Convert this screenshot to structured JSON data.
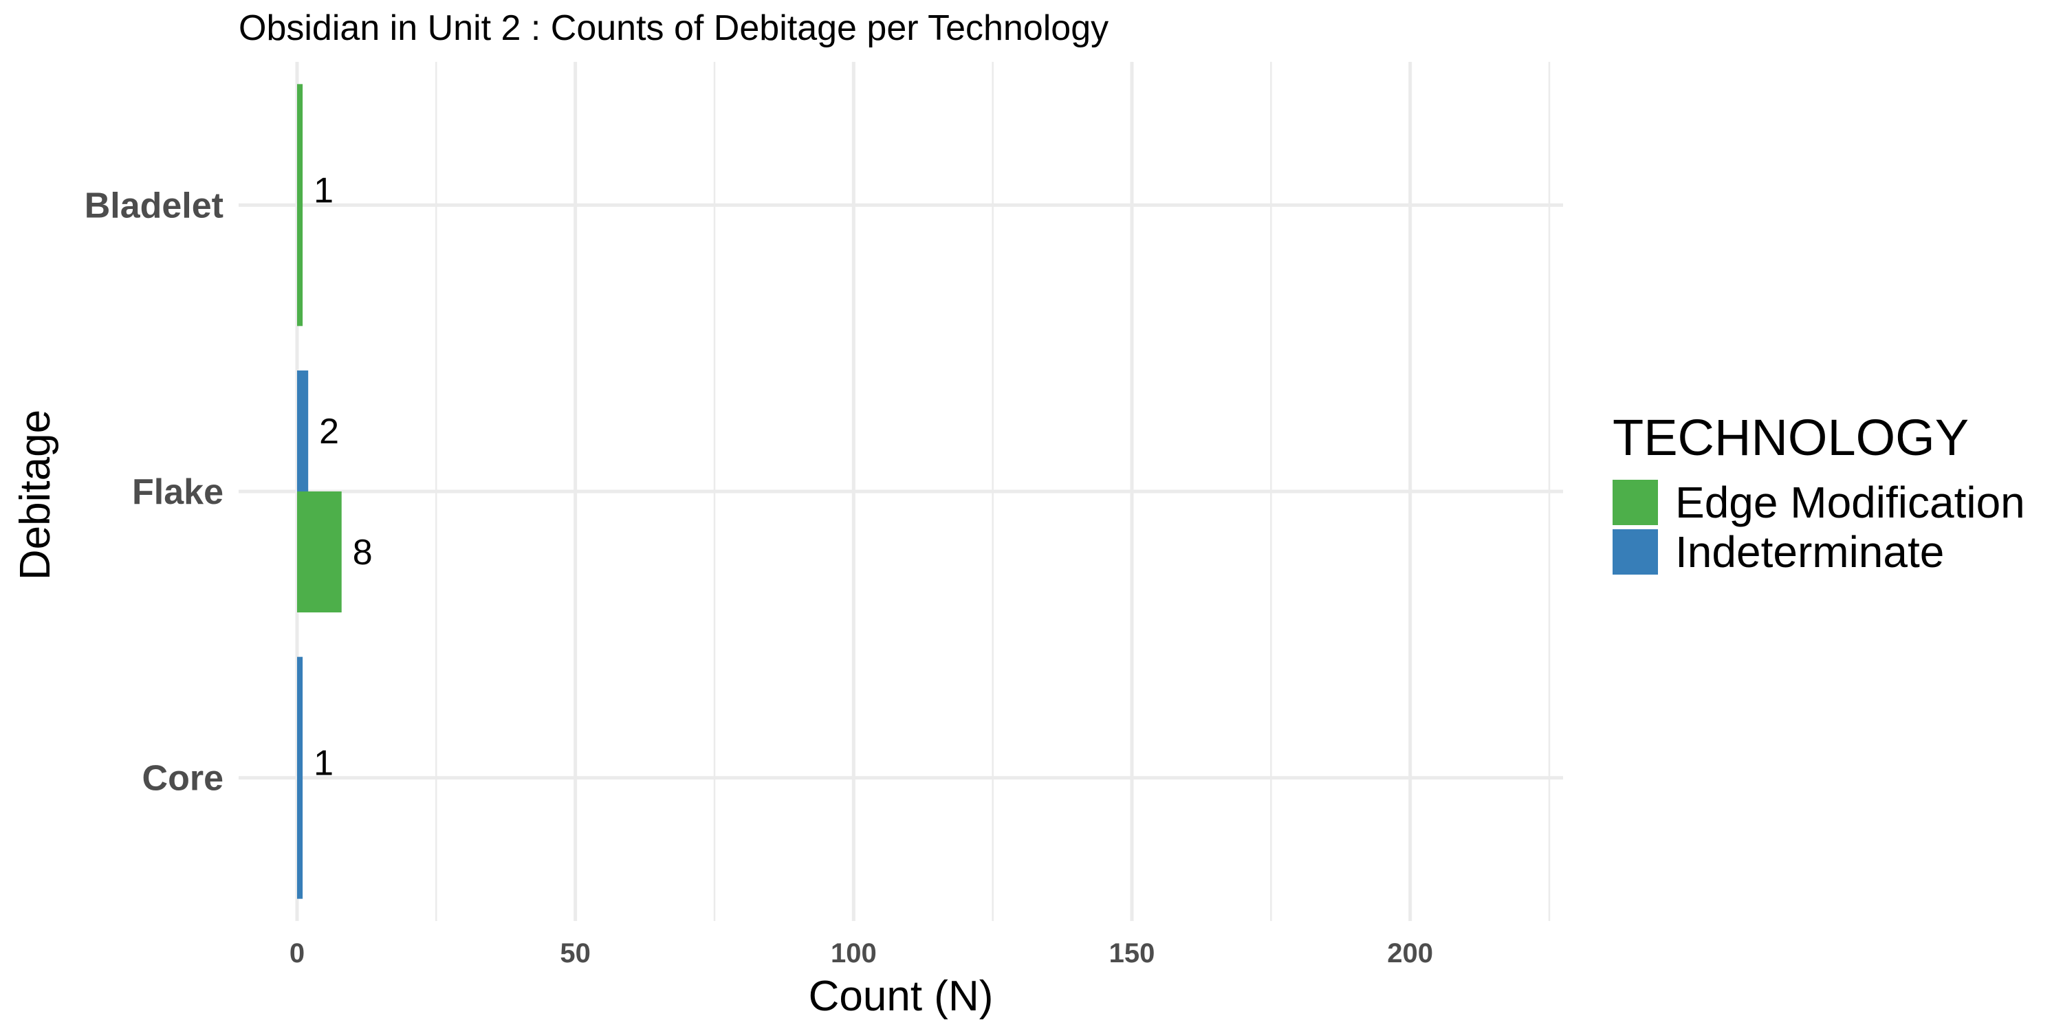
{
  "chart_data": {
    "type": "bar",
    "orientation": "horizontal",
    "title": "Obsidian in Unit 2 : Counts of Debitage per Technology",
    "xlabel": "Count (N)",
    "ylabel": "Debitage",
    "categories": [
      "Bladelet",
      "Flake",
      "Core"
    ],
    "series": [
      {
        "name": "Edge Modification",
        "color": "#4daf4a",
        "values": [
          1,
          8,
          null
        ]
      },
      {
        "name": "Indeterminate",
        "color": "#377eb8",
        "values": [
          null,
          2,
          1
        ]
      }
    ],
    "xlim": [
      0,
      235
    ],
    "xticks": [
      0,
      50,
      100,
      150,
      200
    ],
    "grid": true,
    "legend": {
      "title": "TECHNOLOGY",
      "position": "right",
      "entries": [
        "Edge Modification",
        "Indeterminate"
      ]
    }
  }
}
